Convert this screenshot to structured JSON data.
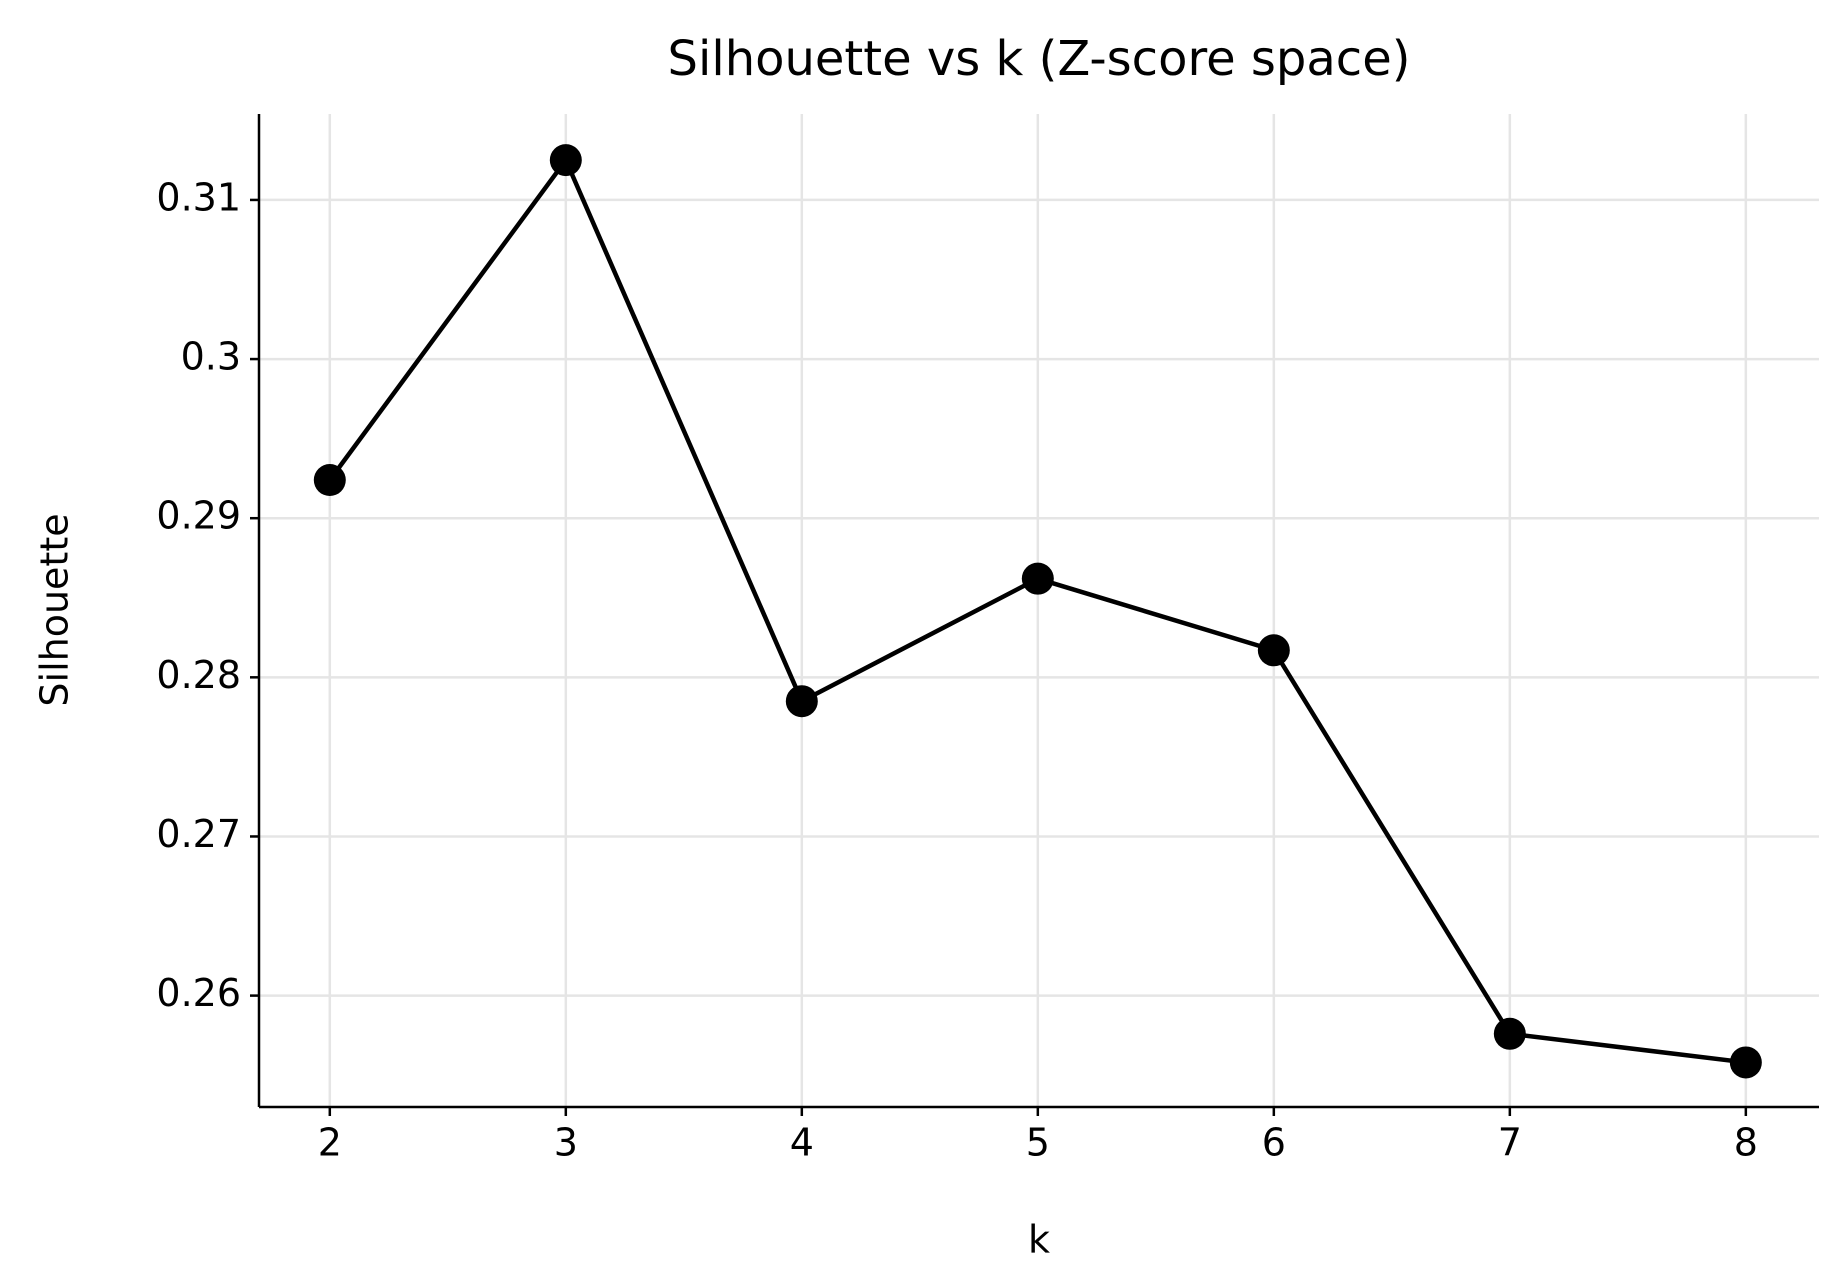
{
  "chart_data": {
    "type": "line",
    "title": "Silhouette vs k (Z-score space)",
    "x_label": "k",
    "y_label": "Silhouette",
    "x": [
      2,
      3,
      4,
      5,
      6,
      7,
      8
    ],
    "series": [
      {
        "color": "#000000",
        "values": [
          0.2924,
          0.3125,
          0.2785,
          0.2862,
          0.2817,
          0.2576,
          0.2558
        ]
      }
    ],
    "xlim": [
      1.7,
      8.31
    ],
    "xticks": [
      2,
      3,
      4,
      5,
      6,
      7,
      8
    ],
    "ylim": [
      0.253,
      0.3154
    ],
    "yticks": [
      0.26,
      0.27,
      0.28,
      0.29,
      0.3,
      0.31
    ],
    "grid": true
  }
}
